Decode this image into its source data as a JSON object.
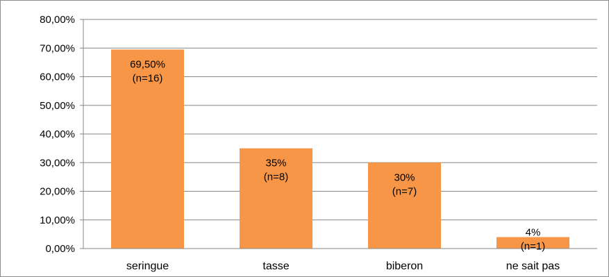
{
  "chart_data": {
    "type": "bar",
    "title": "",
    "xlabel": "",
    "ylabel": "",
    "categories": [
      "seringue",
      "tasse",
      "biberon",
      "ne sait pas"
    ],
    "values": [
      69.5,
      35,
      30,
      4
    ],
    "data_labels": [
      [
        "69,50%",
        "(n=16)"
      ],
      [
        "35%",
        "(n=8)"
      ],
      [
        "30%",
        "(n=7)"
      ],
      [
        "4%",
        "(n=1)"
      ]
    ],
    "y_ticks": [
      "0,00%",
      "10,00%",
      "20,00%",
      "30,00%",
      "40,00%",
      "50,00%",
      "60,00%",
      "70,00%",
      "80,00%"
    ],
    "ylim": [
      0,
      80
    ],
    "grid": true,
    "legend": "none",
    "bar_color": "#f79646",
    "grid_color": "#868686"
  }
}
